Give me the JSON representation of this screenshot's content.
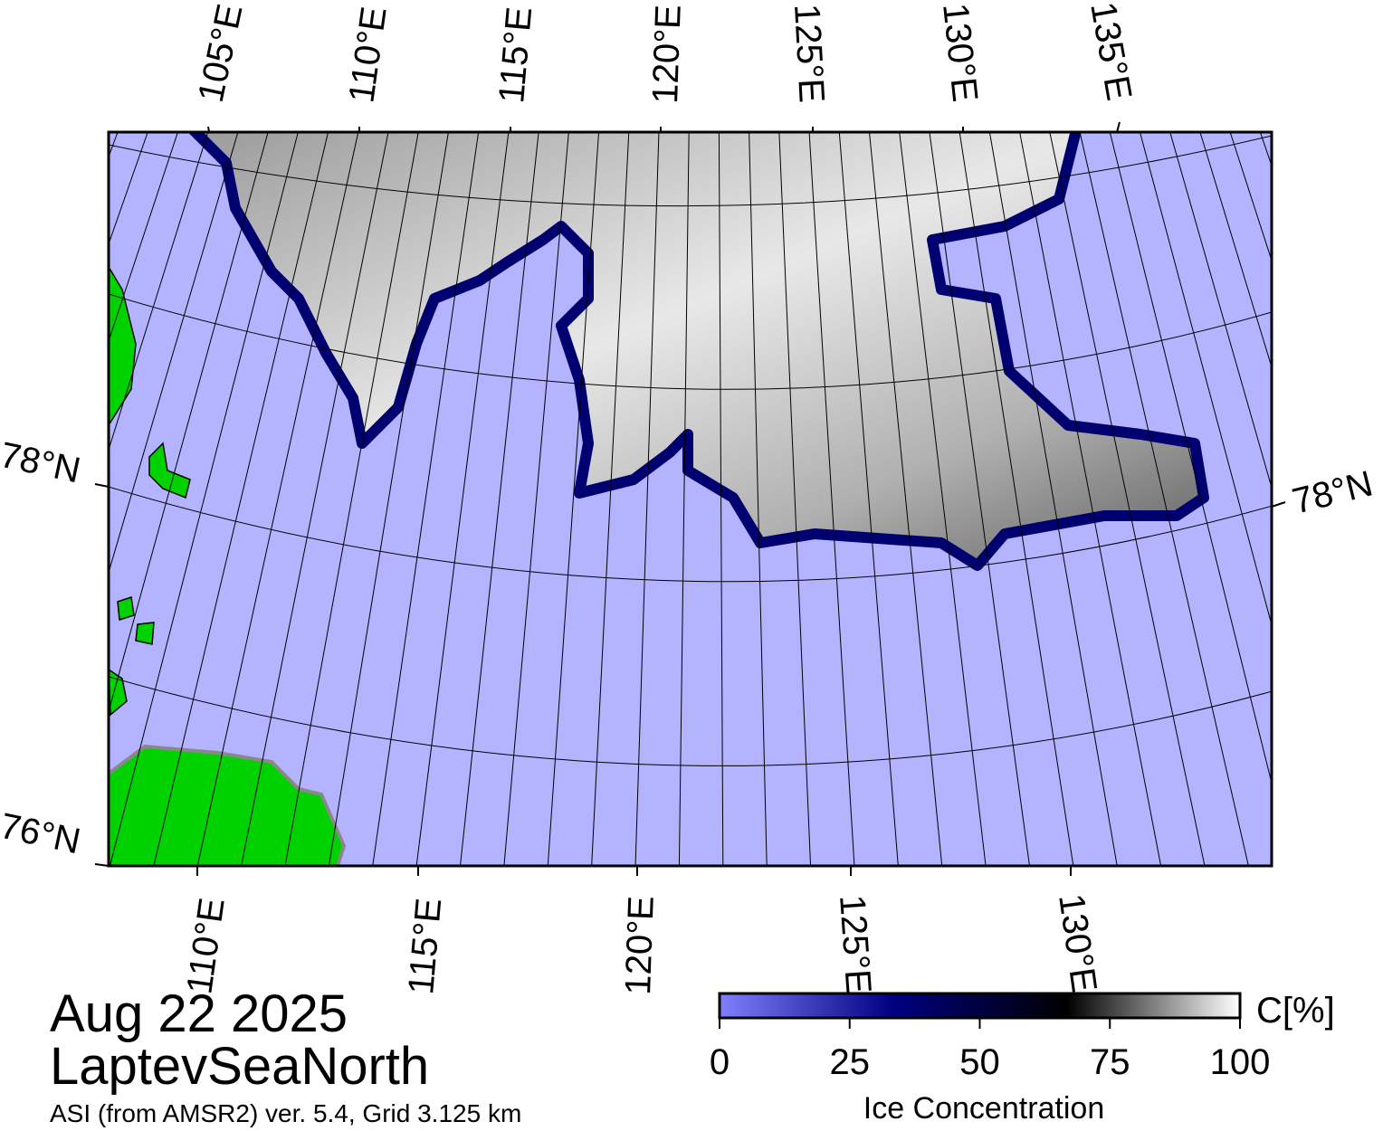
{
  "map": {
    "date": "Aug 22 2025",
    "region": "LaptevSeaNorth",
    "source": "ASI (from AMSR2) ver. 5.4,  Grid 3.125 km",
    "top_lon_labels": [
      "105°E",
      "110°E",
      "115°E",
      "120°E",
      "125°E",
      "130°E",
      "135°E"
    ],
    "bottom_lon_labels": [
      "110°E",
      "115°E",
      "120°E",
      "125°E",
      "130°E"
    ],
    "left_lat_labels": [
      "78°N",
      "76°N"
    ],
    "right_lat_labels": [
      "78°N"
    ]
  },
  "colorbar": {
    "unit": "C[%]",
    "label": "Ice Concentration",
    "range": [
      0,
      100
    ],
    "ticks": [
      0,
      25,
      50,
      75,
      100
    ],
    "colors": [
      "#8080ff",
      "#000080",
      "#000000",
      "#ffffff"
    ]
  }
}
